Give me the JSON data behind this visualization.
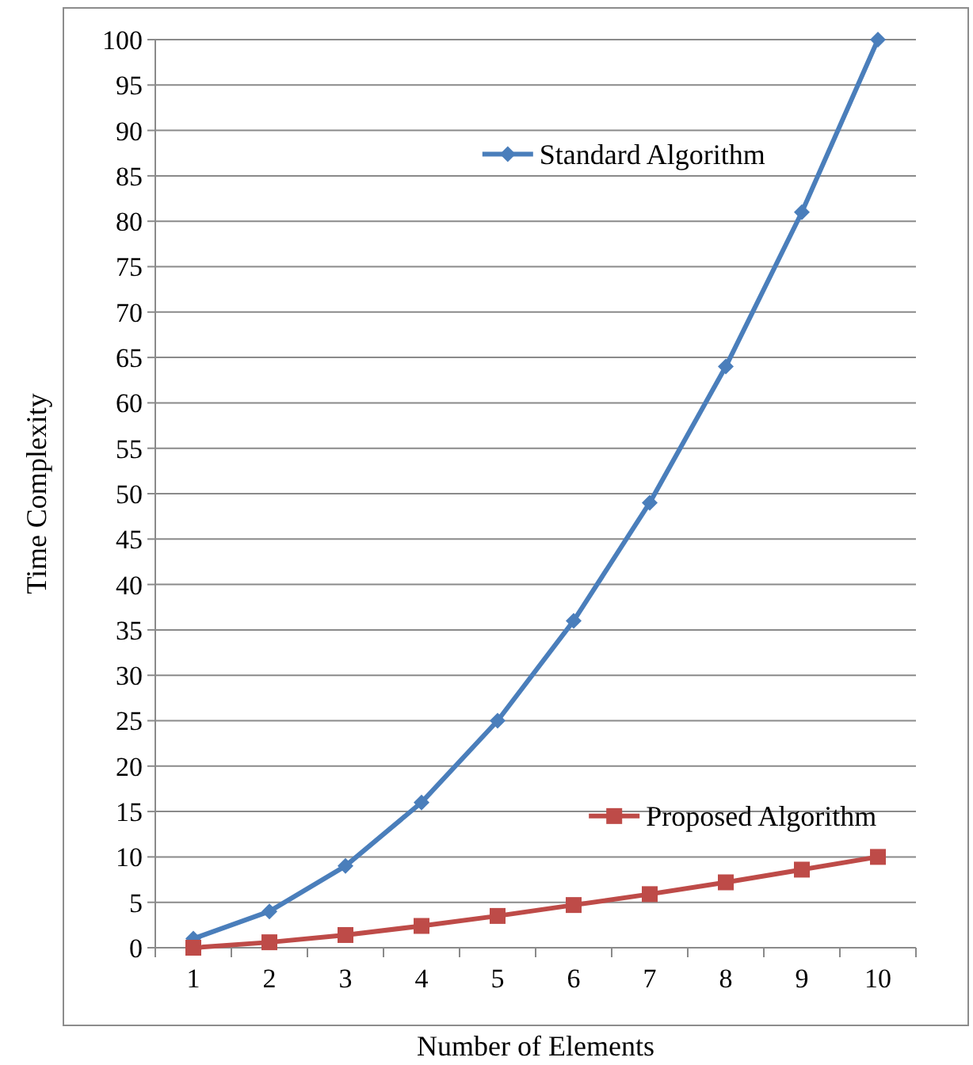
{
  "chart_data": {
    "type": "line",
    "xlabel": "Number of Elements",
    "ylabel": "Time Complexity",
    "categories": [
      "1",
      "2",
      "3",
      "4",
      "5",
      "6",
      "7",
      "8",
      "9",
      "10"
    ],
    "series": [
      {
        "name": "Standard Algorithm",
        "color": "#4a7ebb",
        "marker": "diamond",
        "values": [
          1,
          4,
          9,
          16,
          25,
          36,
          49,
          64,
          81,
          100
        ]
      },
      {
        "name": "Proposed Algorithm",
        "color": "#be4b48",
        "marker": "square",
        "values": [
          0,
          0.6,
          1.4,
          2.4,
          3.5,
          4.7,
          5.9,
          7.2,
          8.6,
          10
        ]
      }
    ],
    "ylim": [
      0,
      100
    ],
    "yticks": [
      0,
      5,
      10,
      15,
      20,
      25,
      30,
      35,
      40,
      45,
      50,
      55,
      60,
      65,
      70,
      75,
      80,
      85,
      90,
      95,
      100
    ],
    "grid": "y",
    "legend": "right"
  }
}
